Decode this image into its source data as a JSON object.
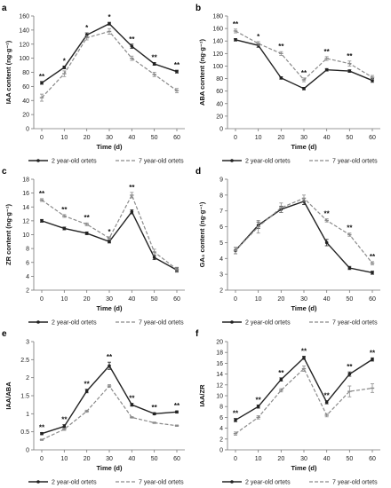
{
  "legend_labels": {
    "s1": "2 year-old ortets",
    "s2": "7 year-old ortets"
  },
  "colors": {
    "s1": "#222222",
    "s2": "#8a8a8a",
    "axis": "#777777"
  },
  "chart_data": [
    {
      "panel": "a",
      "type": "line",
      "xlabel": "Time (d)",
      "ylabel": "IAA content (ng·g⁻¹)",
      "x": [
        0,
        10,
        20,
        30,
        40,
        50,
        60
      ],
      "ylim": [
        0,
        160
      ],
      "yticks": [
        0,
        20,
        40,
        60,
        80,
        100,
        120,
        140,
        160
      ],
      "grid": false,
      "legend": "bottom",
      "series": [
        {
          "name": "2 year-old ortets",
          "values": [
            65,
            87,
            133,
            149,
            117,
            92,
            81
          ],
          "errors": [
            2,
            2,
            3,
            2,
            3,
            2,
            2
          ]
        },
        {
          "name": "7 year-old ortets",
          "values": [
            44,
            78,
            129,
            138,
            100,
            77,
            54
          ],
          "errors": [
            5,
            4,
            3,
            4,
            3,
            3,
            3
          ]
        }
      ],
      "annotations": [
        "**",
        "*",
        "*",
        "*",
        "**",
        "**",
        "**"
      ]
    },
    {
      "panel": "b",
      "type": "line",
      "xlabel": "Time (d)",
      "ylabel": "ABA content (ng·g⁻¹)",
      "x": [
        0,
        10,
        20,
        30,
        40,
        50,
        60
      ],
      "ylim": [
        0,
        180
      ],
      "yticks": [
        0,
        20,
        40,
        60,
        80,
        100,
        120,
        140,
        160,
        180
      ],
      "grid": false,
      "legend": "bottom",
      "series": [
        {
          "name": "2 year-old ortets",
          "values": [
            142,
            133,
            81,
            64,
            94,
            92,
            77
          ],
          "errors": [
            2,
            3,
            2,
            2,
            2,
            2,
            3
          ]
        },
        {
          "name": "7 year-old ortets",
          "values": [
            156,
            136,
            120,
            78,
            112,
            104,
            82
          ],
          "errors": [
            3,
            3,
            3,
            3,
            3,
            4,
            3
          ]
        }
      ],
      "annotations": [
        "**",
        "*",
        "**",
        "**",
        "**",
        "**",
        ""
      ]
    },
    {
      "panel": "c",
      "type": "line",
      "xlabel": "Time (d)",
      "ylabel": "ZR content (ng·g⁻¹)",
      "x": [
        0,
        10,
        20,
        30,
        40,
        50,
        60
      ],
      "ylim": [
        2,
        18
      ],
      "yticks": [
        2,
        4,
        6,
        8,
        10,
        12,
        14,
        16,
        18
      ],
      "grid": false,
      "legend": "bottom",
      "series": [
        {
          "name": "2 year-old ortets",
          "values": [
            12,
            10.9,
            10.2,
            9,
            13.3,
            6.7,
            4.9
          ],
          "errors": [
            0.2,
            0.2,
            0.2,
            0.2,
            0.3,
            0.3,
            0.3
          ]
        },
        {
          "name": "7 year-old ortets",
          "values": [
            15,
            12.7,
            11.5,
            9.5,
            15.7,
            7.5,
            5
          ],
          "errors": [
            0.2,
            0.2,
            0.2,
            0.2,
            0.4,
            0.4,
            0.3
          ]
        }
      ],
      "annotations": [
        "**",
        "**",
        "**",
        "*",
        "**",
        "",
        ""
      ]
    },
    {
      "panel": "d",
      "type": "line",
      "xlabel": "Time (d)",
      "ylabel": "GA₃ content (ng·g⁻¹)",
      "x": [
        0,
        10,
        20,
        30,
        40,
        50,
        60
      ],
      "ylim": [
        2,
        9
      ],
      "yticks": [
        2,
        3,
        4,
        5,
        6,
        7,
        8,
        9
      ],
      "grid": false,
      "legend": "bottom",
      "series": [
        {
          "name": "2 year-old ortets",
          "values": [
            4.5,
            6.1,
            7.1,
            7.6,
            5,
            3.4,
            3.1
          ],
          "errors": [
            0.2,
            0.2,
            0.2,
            0.2,
            0.2,
            0.1,
            0.1
          ]
        },
        {
          "name": "7 year-old ortets",
          "values": [
            4.5,
            6,
            7.2,
            7.8,
            6.4,
            5.5,
            3.7
          ],
          "errors": [
            0.2,
            0.4,
            0.3,
            0.2,
            0.1,
            0.1,
            0.1
          ]
        }
      ],
      "annotations": [
        "",
        "",
        "",
        "",
        "**",
        "**",
        "**"
      ]
    },
    {
      "panel": "e",
      "type": "line",
      "xlabel": "Time (d)",
      "ylabel": "IAA/ABA",
      "x": [
        0,
        10,
        20,
        30,
        40,
        50,
        60
      ],
      "ylim": [
        0,
        3
      ],
      "yticks": [
        0,
        0.5,
        1,
        1.5,
        2,
        2.5,
        3
      ],
      "grid": false,
      "legend": "bottom",
      "series": [
        {
          "name": "2 year-old ortets",
          "values": [
            0.45,
            0.65,
            1.63,
            2.33,
            1.25,
            1,
            1.05
          ],
          "errors": [
            0.03,
            0.05,
            0.05,
            0.1,
            0.04,
            0.03,
            0.03
          ]
        },
        {
          "name": "7 year-old ortets",
          "values": [
            0.28,
            0.57,
            1.07,
            1.77,
            0.9,
            0.75,
            0.67
          ],
          "errors": [
            0.02,
            0.03,
            0.03,
            0.04,
            0.02,
            0.02,
            0.02
          ]
        }
      ],
      "annotations": [
        "**",
        "**",
        "**",
        "**",
        "**",
        "**",
        "**"
      ]
    },
    {
      "panel": "f",
      "type": "line",
      "xlabel": "Time (d)",
      "ylabel": "IAA/ZR",
      "x": [
        0,
        10,
        20,
        30,
        40,
        50,
        60
      ],
      "ylim": [
        0,
        20
      ],
      "yticks": [
        0,
        2,
        4,
        6,
        8,
        10,
        12,
        14,
        16,
        18,
        20
      ],
      "grid": false,
      "legend": "bottom",
      "series": [
        {
          "name": "2 year-old ortets",
          "values": [
            5.5,
            8,
            13,
            17,
            8.8,
            14,
            16.7
          ],
          "errors": [
            0.3,
            0.3,
            0.3,
            0.3,
            0.3,
            0.4,
            0.3
          ]
        },
        {
          "name": "7 year-old ortets",
          "values": [
            3,
            6,
            11,
            15,
            6.4,
            10.8,
            11.4
          ],
          "errors": [
            0.3,
            0.3,
            0.3,
            0.5,
            0.3,
            1,
            0.8
          ]
        }
      ],
      "annotations": [
        "**",
        "**",
        "**",
        "**",
        "**",
        "**",
        "**"
      ]
    }
  ]
}
